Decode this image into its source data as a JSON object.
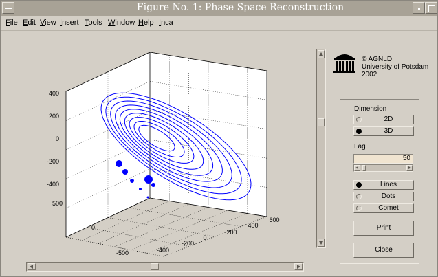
{
  "window": {
    "title": "Figure No. 1: Phase Space Reconstruction"
  },
  "menu": [
    "File",
    "Edit",
    "View",
    "Insert",
    "Tools",
    "Window",
    "Help",
    "Inca"
  ],
  "logo": {
    "icon": "university-building-icon",
    "line1": "© AGNLD",
    "line2": "University of Potsdam",
    "line3": "2002"
  },
  "controls": {
    "dimension_label": "Dimension",
    "dim_2d": "2D",
    "dim_3d": "3D",
    "dimension_selected": "3D",
    "lag_label": "Lag",
    "lag_value": "50",
    "style_lines": "Lines",
    "style_dots": "Dots",
    "style_comet": "Comet",
    "style_selected": "Lines",
    "print_label": "Print",
    "close_label": "Close"
  },
  "chart_data": {
    "type": "line",
    "mode": "3d",
    "title": "",
    "xlabel": "",
    "ylabel": "",
    "zlabel": "",
    "x_ticks": [
      "-400",
      "-200",
      "0",
      "200",
      "400",
      "600"
    ],
    "y_ticks": [
      "-500",
      "0",
      "500"
    ],
    "z_ticks": [
      "400",
      "200",
      "0",
      "-200",
      "-400"
    ],
    "xlim": [
      -500,
      600
    ],
    "ylim": [
      -500,
      600
    ],
    "zlim": [
      -450,
      450
    ],
    "grid": true,
    "series_color": "#0000ff",
    "description_orbit": "nested elliptical spiral trajectory in 3D",
    "highlighted_points": [
      {
        "x": -400,
        "y": 300,
        "z": 20
      },
      {
        "x": -350,
        "y": 280,
        "z": -30
      },
      {
        "x": -300,
        "y": 260,
        "z": -100
      },
      {
        "x": -260,
        "y": 240,
        "z": -160
      },
      {
        "x": -150,
        "y": 120,
        "z": -70
      },
      {
        "x": -120,
        "y": 100,
        "z": -120
      },
      {
        "x": -100,
        "y": 80,
        "z": -150
      }
    ]
  }
}
